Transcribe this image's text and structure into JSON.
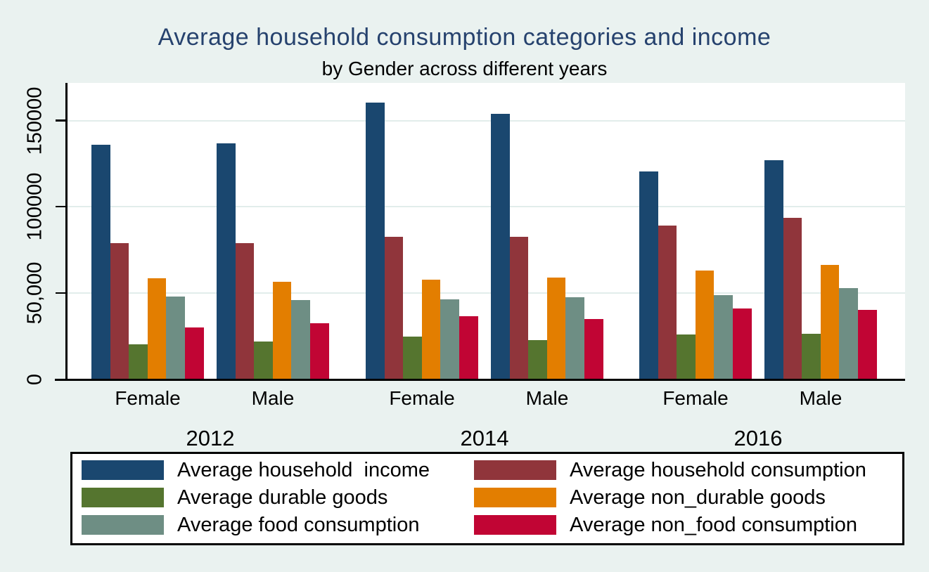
{
  "chart_data": {
    "type": "bar",
    "title": "Average household consumption categories and income",
    "subtitle": "by Gender across different years",
    "xlabel": "",
    "ylabel": "",
    "ylim": [
      0,
      171000
    ],
    "grid": true,
    "legend_position": "bottom",
    "yticks": [
      {
        "value": 0,
        "label": "0"
      },
      {
        "value": 50000,
        "label": "50,000"
      },
      {
        "value": 100000,
        "label": "100000"
      },
      {
        "value": 150000,
        "label": "150000"
      }
    ],
    "years": [
      "2012",
      "2014",
      "2016"
    ],
    "genders": [
      "Female",
      "Male"
    ],
    "series": [
      {
        "name": "Average household  income",
        "color": "#1a476f"
      },
      {
        "name": "Average household consumption",
        "color": "#90353b"
      },
      {
        "name": "Average durable goods",
        "color": "#55752f"
      },
      {
        "name": "Average non_durable goods",
        "color": "#e37e00"
      },
      {
        "name": "Average food consumption",
        "color": "#6e8e84"
      },
      {
        "name": "Average non_food consumption",
        "color": "#c10534"
      }
    ],
    "groups": [
      {
        "year": "2012",
        "gender": "Female",
        "values": [
          136000,
          79000,
          20500,
          58500,
          48000,
          30000
        ]
      },
      {
        "year": "2012",
        "gender": "Male",
        "values": [
          137000,
          79000,
          22000,
          56500,
          46000,
          32500
        ]
      },
      {
        "year": "2014",
        "gender": "Female",
        "values": [
          160500,
          82500,
          25000,
          58000,
          46500,
          36500
        ]
      },
      {
        "year": "2014",
        "gender": "Male",
        "values": [
          154000,
          82500,
          23000,
          59000,
          47500,
          35000
        ]
      },
      {
        "year": "2016",
        "gender": "Female",
        "values": [
          120500,
          89000,
          26000,
          63000,
          49000,
          41000
        ]
      },
      {
        "year": "2016",
        "gender": "Male",
        "values": [
          127000,
          93500,
          26500,
          66500,
          53000,
          40500
        ]
      }
    ],
    "colors": {
      "background": "#eaf2f0",
      "plot_background": "#ffffff",
      "gridline": "#e2edeb",
      "axis": "#000000",
      "title": "#26426e",
      "text": "#000000"
    }
  }
}
